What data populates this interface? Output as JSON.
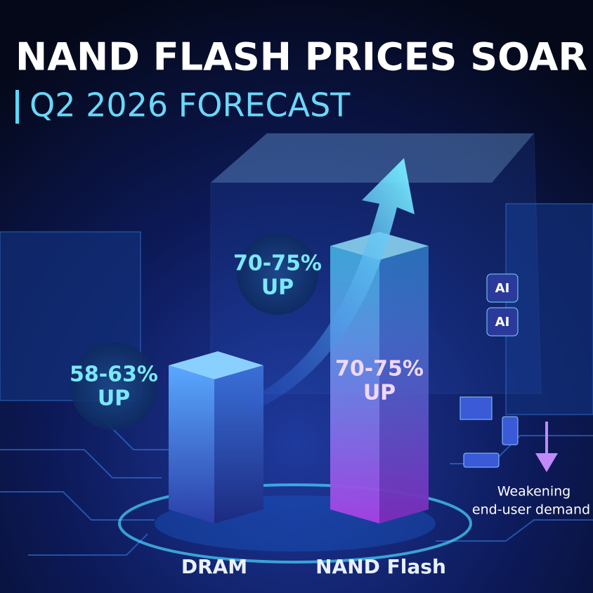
{
  "header": {
    "title": "NAND FLASH PRICES SOAR",
    "subtitle": "Q2 2026 FORECAST"
  },
  "callouts": [
    {
      "lines": [
        "70-75%",
        "UP"
      ]
    },
    {
      "lines": [
        "58-63%",
        "UP"
      ]
    },
    {
      "lines": [
        "70-75%",
        "UP"
      ]
    }
  ],
  "bars": [
    {
      "label": "DRAM"
    },
    {
      "label": "NAND Flash"
    }
  ],
  "icons": {
    "ai": [
      "AI",
      "AI"
    ]
  },
  "note": {
    "lines": [
      "Weakening",
      "end-user demand"
    ]
  }
}
